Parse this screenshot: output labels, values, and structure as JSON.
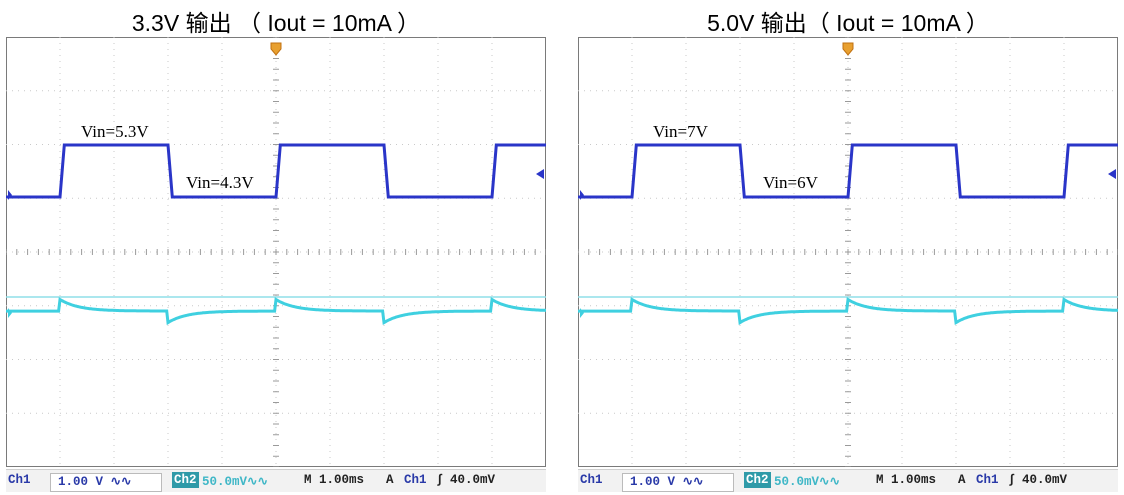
{
  "chart_data": [
    {
      "type": "line",
      "title": "3.3V 输出 （ Iout = 10mA ）",
      "annotations": [
        {
          "text": "Vin=5.3V",
          "x": 1.4,
          "y": 1.0
        },
        {
          "text": "Vin=4.3V",
          "x": 3.4,
          "y": 0.0
        }
      ],
      "x": [
        0,
        1.0,
        1.08,
        3.0,
        3.08,
        5.0,
        5.08,
        7.0,
        7.08,
        9.0,
        9.08,
        10
      ],
      "series": [
        {
          "channel": "Ch1",
          "color": "#2a35c8",
          "values": [
            0,
            0,
            1,
            1,
            0,
            0,
            1,
            1,
            0,
            0,
            1,
            1
          ]
        },
        {
          "channel": "Ch2",
          "color": "#3fd0e0",
          "values": [
            0.15,
            0.15,
            0.5,
            0.15,
            -0.2,
            0.15,
            0.5,
            0.15,
            -0.2,
            0.15,
            0.5,
            0.15
          ]
        }
      ],
      "status_bar": {
        "ch1_label": "Ch1",
        "ch1_scale": "1.00 V ∿∿",
        "ch2_label": "Ch2",
        "ch2_scale": "50.0mV∿∿",
        "timebase": "M 1.00ms",
        "acq": "A",
        "trigger_ch": "Ch1",
        "trigger_slope": "∫",
        "trigger_level": "40.0mV"
      }
    },
    {
      "type": "line",
      "title": "5.0V 输出（ Iout = 10mA ）",
      "annotations": [
        {
          "text": "Vin=7V",
          "x": 1.4,
          "y": 1.0
        },
        {
          "text": "Vin=6V",
          "x": 3.5,
          "y": 0.0
        }
      ],
      "x": [
        0,
        1.0,
        1.08,
        3.0,
        3.08,
        5.0,
        5.08,
        7.0,
        7.08,
        9.0,
        9.08,
        10
      ],
      "series": [
        {
          "channel": "Ch1",
          "color": "#2a35c8",
          "values": [
            0,
            0,
            1,
            1,
            0,
            0,
            1,
            1,
            0,
            0,
            1,
            1
          ]
        },
        {
          "channel": "Ch2",
          "color": "#3fd0e0",
          "values": [
            0.15,
            0.15,
            0.5,
            0.15,
            -0.2,
            0.15,
            0.5,
            0.15,
            -0.2,
            0.15,
            0.5,
            0.15
          ]
        }
      ],
      "status_bar": {
        "ch1_label": "Ch1",
        "ch1_scale": "1.00 V ∿∿",
        "ch2_label": "Ch2",
        "ch2_scale": "50.0mV∿∿",
        "timebase": "M 1.00ms",
        "acq": "A",
        "trigger_ch": "Ch1",
        "trigger_slope": "∫",
        "trigger_level": "40.0mV"
      }
    }
  ]
}
